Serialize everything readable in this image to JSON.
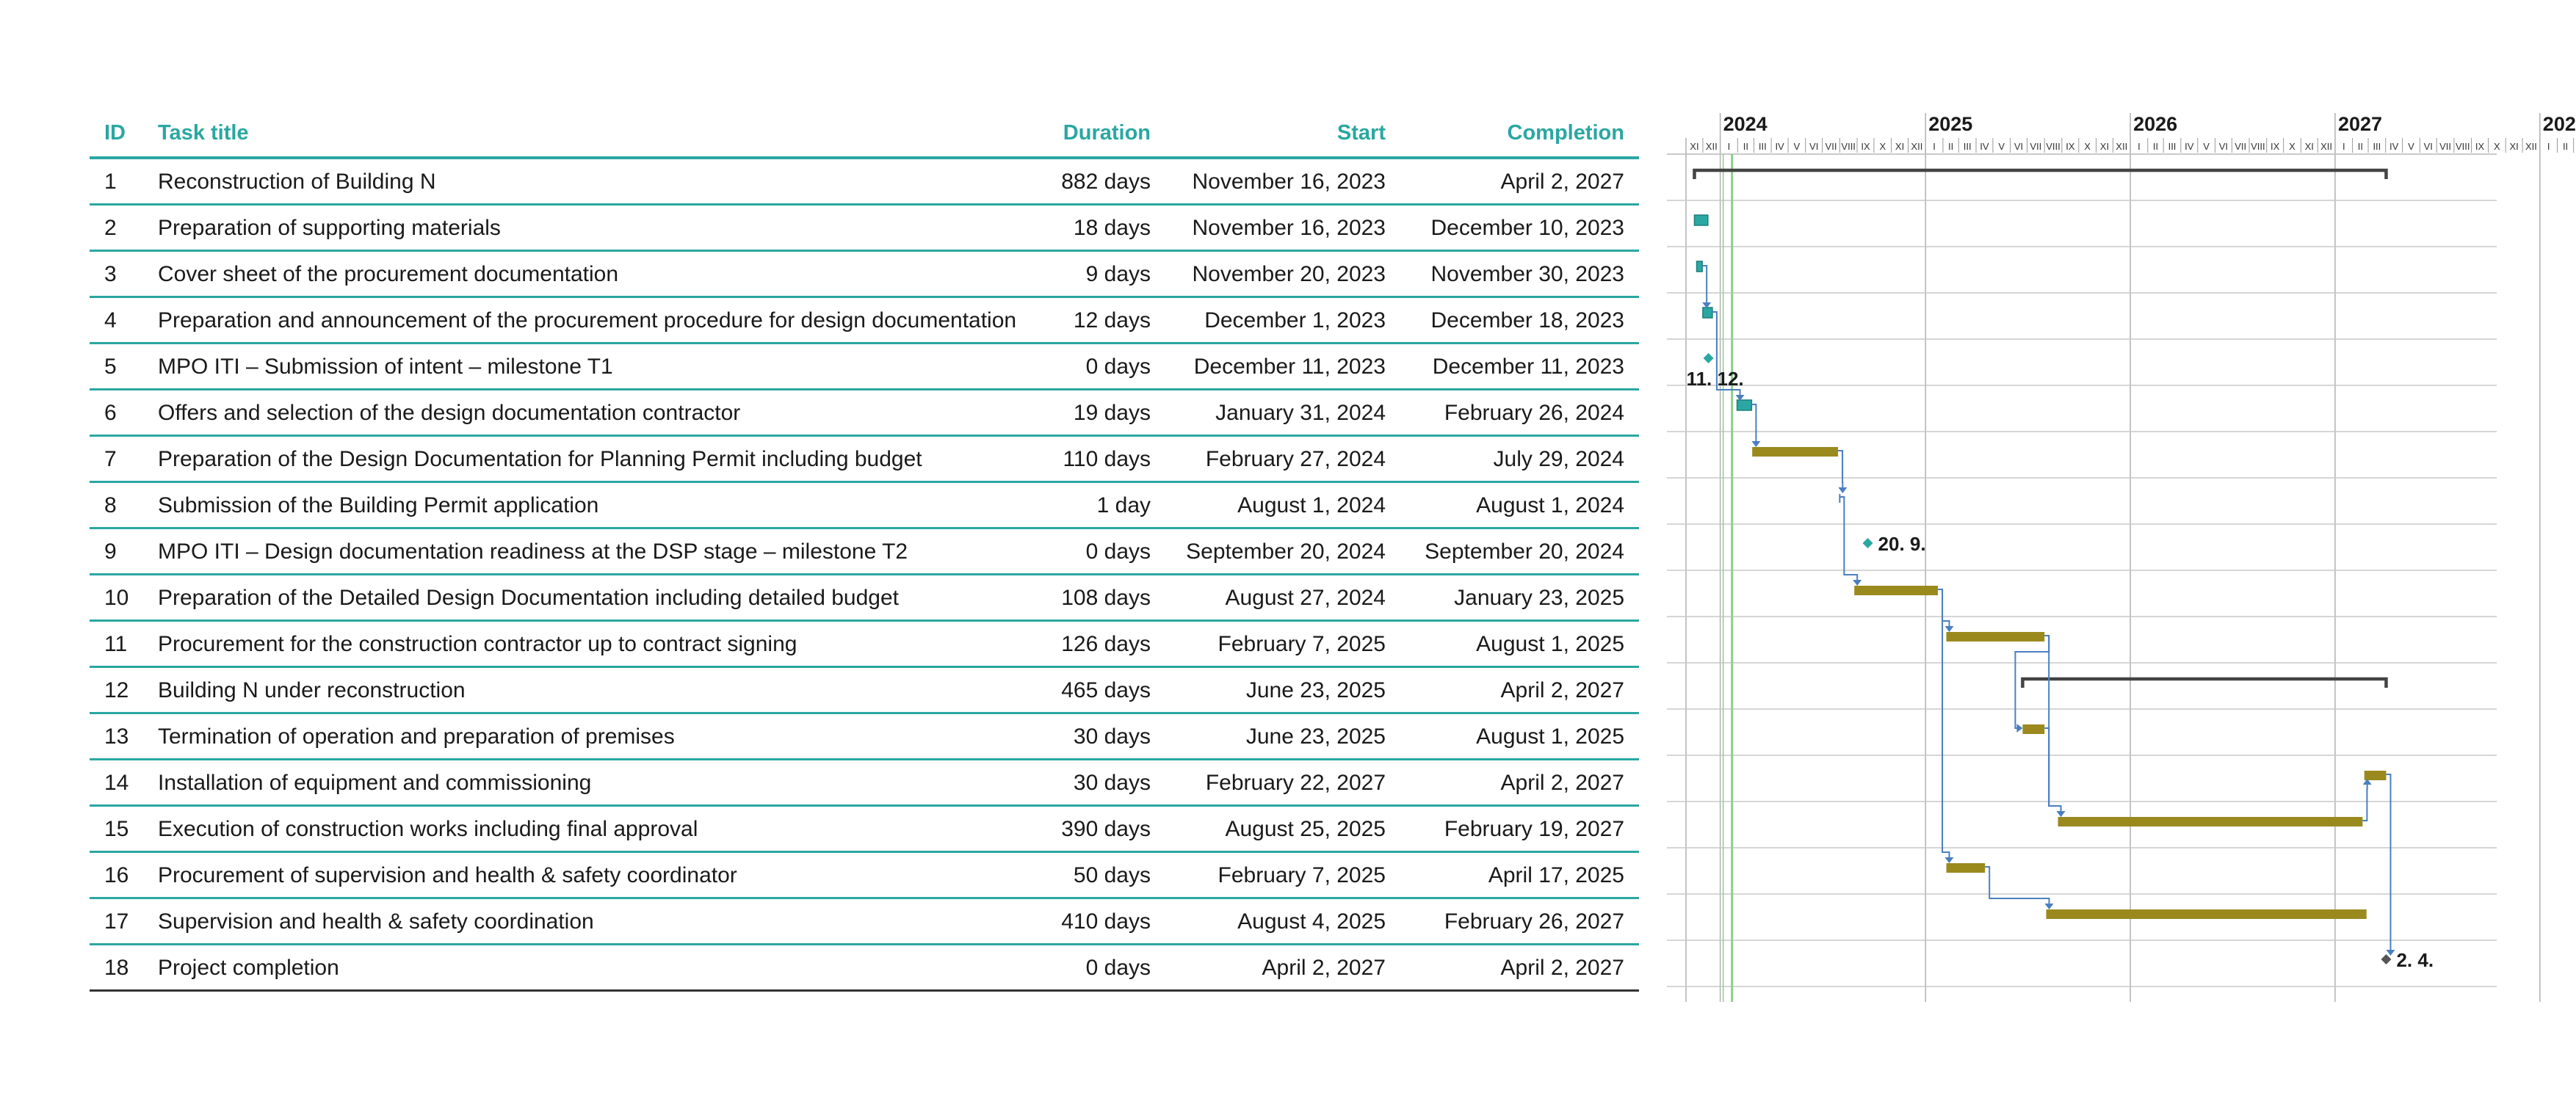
{
  "table": {
    "headers": {
      "id": "ID",
      "title": "Task title",
      "duration": "Duration",
      "start": "Start",
      "completion": "Completion"
    },
    "rows": [
      {
        "id": "1",
        "title": "Reconstruction of Building N",
        "duration": "882 days",
        "start": "November 16, 2023",
        "completion": "April 2, 2027"
      },
      {
        "id": "2",
        "title": "Preparation of supporting materials",
        "duration": "18 days",
        "start": "November 16, 2023",
        "completion": "December 10, 2023"
      },
      {
        "id": "3",
        "title": "Cover sheet of the procurement documentation",
        "duration": "9 days",
        "start": "November 20, 2023",
        "completion": "November 30, 2023"
      },
      {
        "id": "4",
        "title": "Preparation and announcement of the procurement procedure for design documentation",
        "duration": "12 days",
        "start": "December 1, 2023",
        "completion": "December 18, 2023"
      },
      {
        "id": "5",
        "title": "MPO ITI – Submission of intent – milestone T1",
        "duration": "0 days",
        "start": "December 11, 2023",
        "completion": "December 11, 2023"
      },
      {
        "id": "6",
        "title": "Offers and selection of the design documentation contractor",
        "duration": "19 days",
        "start": "January 31, 2024",
        "completion": "February 26, 2024"
      },
      {
        "id": "7",
        "title": "Preparation of the Design Documentation for Planning Permit including budget",
        "duration": "110 days",
        "start": "February 27, 2024",
        "completion": "July 29, 2024"
      },
      {
        "id": "8",
        "title": "Submission of the Building Permit application",
        "duration": "1 day",
        "start": "August 1, 2024",
        "completion": "August 1, 2024"
      },
      {
        "id": "9",
        "title": "MPO ITI – Design documentation readiness at the DSP stage – milestone T2",
        "duration": "0 days",
        "start": "September 20, 2024",
        "completion": "September 20, 2024"
      },
      {
        "id": "10",
        "title": "Preparation of the Detailed Design Documentation including detailed budget",
        "duration": "108 days",
        "start": "August 27, 2024",
        "completion": "January 23, 2025"
      },
      {
        "id": "11",
        "title": "Procurement for the construction contractor up to contract signing",
        "duration": "126 days",
        "start": "February 7, 2025",
        "completion": "August 1, 2025"
      },
      {
        "id": "12",
        "title": "Building N under reconstruction",
        "duration": "465 days",
        "start": "June 23, 2025",
        "completion": "April 2, 2027"
      },
      {
        "id": "13",
        "title": "Termination of operation and preparation of premises",
        "duration": "30 days",
        "start": "June 23, 2025",
        "completion": "August 1, 2025"
      },
      {
        "id": "14",
        "title": "Installation of equipment and commissioning",
        "duration": "30 days",
        "start": "February 22, 2027",
        "completion": "April 2, 2027"
      },
      {
        "id": "15",
        "title": "Execution of construction works including final approval",
        "duration": "390 days",
        "start": "August 25, 2025",
        "completion": "February 19, 2027"
      },
      {
        "id": "16",
        "title": "Procurement of supervision and health & safety coordinator",
        "duration": "50 days",
        "start": "February 7, 2025",
        "completion": "April 17, 2025"
      },
      {
        "id": "17",
        "title": "Supervision and health & safety coordination",
        "duration": "410 days",
        "start": "August 4, 2025",
        "completion": "February 26, 2027"
      },
      {
        "id": "18",
        "title": "Project completion",
        "duration": "0 days",
        "start": "April 2, 2027",
        "completion": "April 2, 2027"
      }
    ]
  },
  "chart_data": {
    "type": "gantt",
    "timeline_start": "2023-11-01",
    "timeline_end": "2027-08-31",
    "years": [
      "2024",
      "2025",
      "2026",
      "2027"
    ],
    "months": [
      "XI",
      "XII",
      "I",
      "II",
      "III",
      "IV",
      "V",
      "VI",
      "VII",
      "VIII",
      "IX",
      "X",
      "XI",
      "XII",
      "I",
      "II",
      "III",
      "IV",
      "V",
      "VI",
      "VII",
      "VIII",
      "IX",
      "X",
      "XI",
      "XII",
      "I",
      "II",
      "III",
      "IV",
      "V",
      "VI",
      "VII",
      "VIII",
      "IX",
      "X",
      "XI",
      "XII",
      "I",
      "II",
      "III",
      "IV",
      "V",
      "VI",
      "VII",
      "VIII",
      "IX",
      "X",
      "XI",
      "XII",
      "I",
      "II",
      "III",
      "IV",
      "V",
      "VI",
      "VII",
      "VIII"
    ],
    "status_date": "2024-01-22",
    "colors": {
      "summary": "#444444",
      "early_task": "#2aa7a2",
      "task": "#9a8a1e",
      "milestone_early": "#2aa7a2",
      "milestone_final": "#555555",
      "link": "#4a7fc1",
      "grid": "#c8c8c8",
      "status_line": "#8fce8a"
    },
    "tasks": [
      {
        "id": 1,
        "kind": "summary",
        "start": "2023-11-16",
        "end": "2027-04-02"
      },
      {
        "id": 2,
        "kind": "early",
        "start": "2023-11-16",
        "end": "2023-12-10"
      },
      {
        "id": 3,
        "kind": "early",
        "start": "2023-11-20",
        "end": "2023-11-30"
      },
      {
        "id": 4,
        "kind": "early",
        "start": "2023-12-01",
        "end": "2023-12-18"
      },
      {
        "id": 5,
        "kind": "milestone",
        "start": "2023-12-11",
        "end": "2023-12-11",
        "label": "11. 12.",
        "label_pos": "below"
      },
      {
        "id": 6,
        "kind": "early",
        "start": "2024-01-31",
        "end": "2024-02-26"
      },
      {
        "id": 7,
        "kind": "task",
        "start": "2024-02-27",
        "end": "2024-07-29"
      },
      {
        "id": 8,
        "kind": "tick",
        "start": "2024-08-01",
        "end": "2024-08-01"
      },
      {
        "id": 9,
        "kind": "milestone",
        "start": "2024-09-20",
        "end": "2024-09-20",
        "label": "20. 9.",
        "label_pos": "right"
      },
      {
        "id": 10,
        "kind": "task",
        "start": "2024-08-27",
        "end": "2025-01-23"
      },
      {
        "id": 11,
        "kind": "task",
        "start": "2025-02-07",
        "end": "2025-08-01"
      },
      {
        "id": 12,
        "kind": "summary",
        "start": "2025-06-23",
        "end": "2027-04-02"
      },
      {
        "id": 13,
        "kind": "task",
        "start": "2025-06-23",
        "end": "2025-08-01"
      },
      {
        "id": 14,
        "kind": "task",
        "start": "2027-02-22",
        "end": "2027-04-02"
      },
      {
        "id": 15,
        "kind": "task",
        "start": "2025-08-25",
        "end": "2027-02-19"
      },
      {
        "id": 16,
        "kind": "task",
        "start": "2025-02-07",
        "end": "2025-04-17"
      },
      {
        "id": 17,
        "kind": "task",
        "start": "2025-08-04",
        "end": "2027-02-26"
      },
      {
        "id": 18,
        "kind": "final",
        "start": "2027-04-02",
        "end": "2027-04-02",
        "label": "2. 4.",
        "label_pos": "right"
      }
    ],
    "links": [
      [
        3,
        4
      ],
      [
        4,
        6
      ],
      [
        6,
        7
      ],
      [
        7,
        8
      ],
      [
        8,
        10
      ],
      [
        10,
        11
      ],
      [
        11,
        13
      ],
      [
        11,
        15
      ],
      [
        10,
        16
      ],
      [
        16,
        17
      ],
      [
        15,
        14
      ],
      [
        14,
        18
      ],
      [
        13,
        15
      ]
    ]
  }
}
